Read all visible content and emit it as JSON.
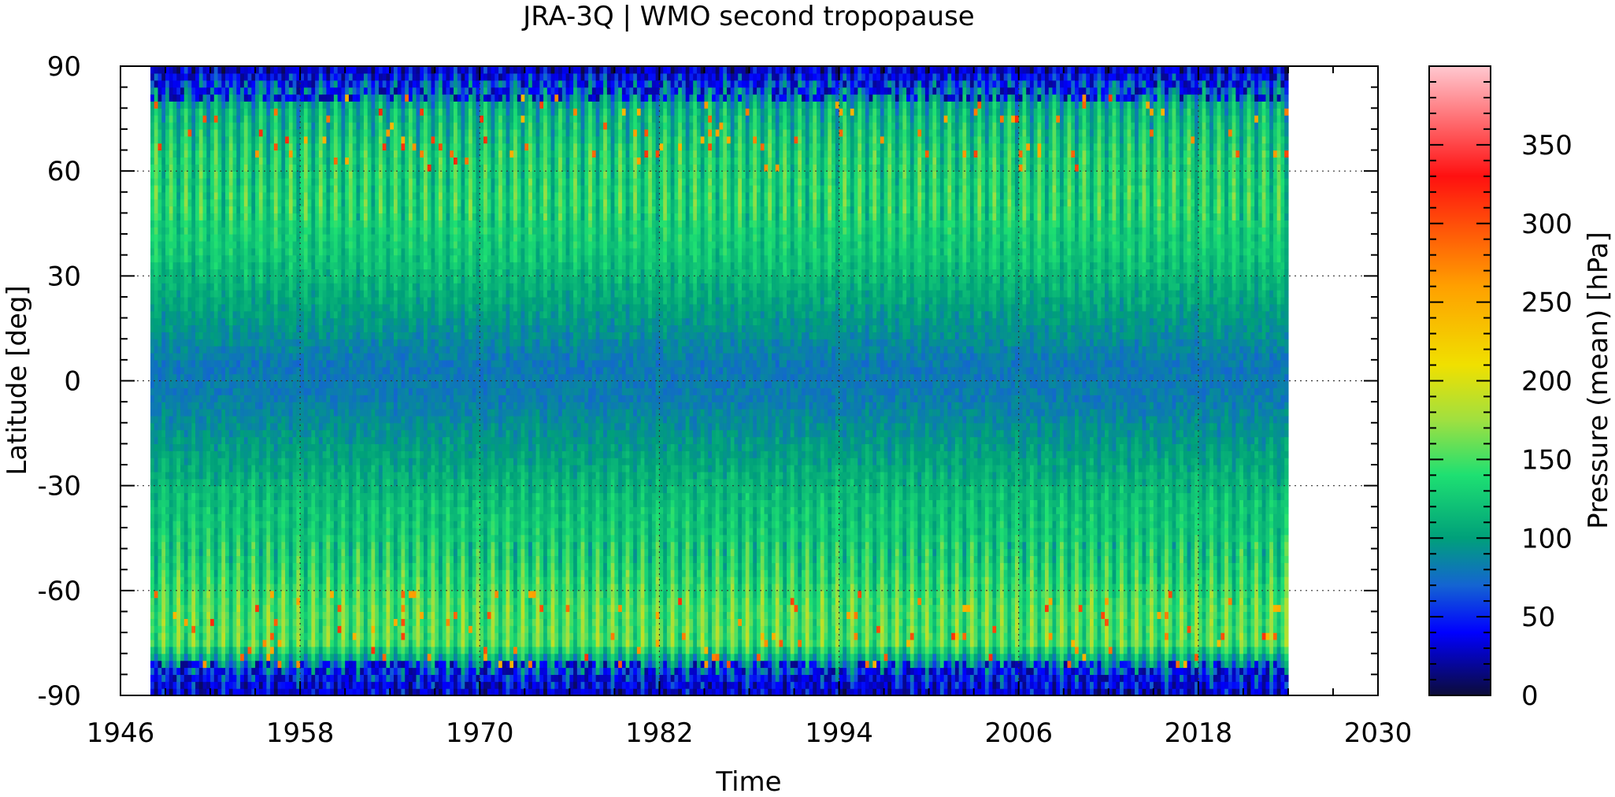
{
  "chart_data": {
    "type": "heatmap",
    "title": "JRA-3Q | WMO second tropopause",
    "xlabel": "Time",
    "ylabel": "Latitude [deg]",
    "xlim": [
      1946,
      2030
    ],
    "ylim": [
      -90,
      90
    ],
    "x_ticks": [
      "1946",
      "1958",
      "1970",
      "1982",
      "1994",
      "2006",
      "2018",
      "2030"
    ],
    "y_ticks": [
      "-90",
      "-60",
      "-30",
      "0",
      "30",
      "60",
      "90"
    ],
    "grid": true,
    "data_range_x": [
      1948,
      2024
    ],
    "colorbar": {
      "label": "Pressure (mean) [hPa]",
      "range": [
        0,
        400
      ],
      "ticks": [
        "0",
        "50",
        "100",
        "150",
        "200",
        "250",
        "300",
        "350"
      ],
      "colormap": [
        {
          "v": 0,
          "color": "#0c0c38"
        },
        {
          "v": 40,
          "color": "#0000ff"
        },
        {
          "v": 70,
          "color": "#1464d2"
        },
        {
          "v": 100,
          "color": "#00a07a"
        },
        {
          "v": 140,
          "color": "#1ee072"
        },
        {
          "v": 175,
          "color": "#a0e040"
        },
        {
          "v": 210,
          "color": "#f0e000"
        },
        {
          "v": 260,
          "color": "#ffa000"
        },
        {
          "v": 330,
          "color": "#ff1010"
        },
        {
          "v": 400,
          "color": "#ffc8d0"
        }
      ]
    },
    "latitude_profile_hpa": [
      {
        "lat": -90,
        "value": 30
      },
      {
        "lat": -84,
        "value": 60
      },
      {
        "lat": -75,
        "value": 150
      },
      {
        "lat": -65,
        "value": 150
      },
      {
        "lat": -50,
        "value": 128
      },
      {
        "lat": -35,
        "value": 120
      },
      {
        "lat": -20,
        "value": 100
      },
      {
        "lat": -5,
        "value": 82
      },
      {
        "lat": 5,
        "value": 80
      },
      {
        "lat": 20,
        "value": 100
      },
      {
        "lat": 35,
        "value": 122
      },
      {
        "lat": 50,
        "value": 135
      },
      {
        "lat": 65,
        "value": 130
      },
      {
        "lat": 78,
        "value": 110
      },
      {
        "lat": 85,
        "value": 70
      },
      {
        "lat": 90,
        "value": 20
      }
    ],
    "seasonal_amplitude_hpa": 30
  }
}
